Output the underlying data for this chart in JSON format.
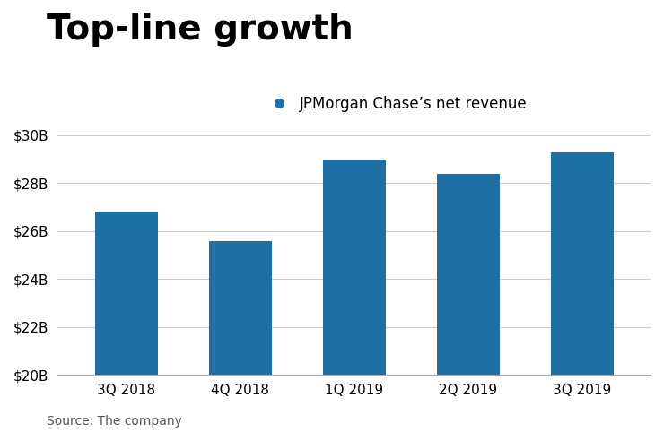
{
  "title": "Top-line growth",
  "legend_label": "JPMorgan Chase’s net revenue",
  "source": "Source: The company",
  "categories": [
    "3Q 2018",
    "4Q 2018",
    "1Q 2019",
    "2Q 2019",
    "3Q 2019"
  ],
  "values": [
    26.8,
    25.6,
    29.0,
    28.4,
    29.3
  ],
  "bar_color": "#1d6fa4",
  "legend_dot_color": "#1d6fa4",
  "ylim": [
    20,
    30
  ],
  "yticks": [
    20,
    22,
    24,
    26,
    28,
    30
  ],
  "ytick_labels": [
    "$20B",
    "$22B",
    "$24B",
    "$26B",
    "$28B",
    "$30B"
  ],
  "background_color": "#ffffff",
  "title_fontsize": 28,
  "title_fontweight": "bold",
  "axis_label_fontsize": 11,
  "source_fontsize": 10,
  "legend_fontsize": 12,
  "bar_width": 0.55
}
